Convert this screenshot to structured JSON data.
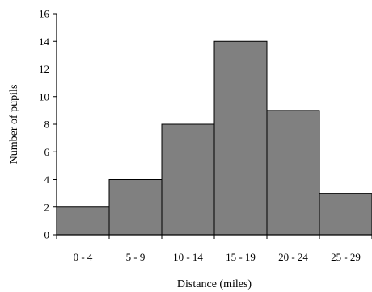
{
  "chart_data": {
    "type": "bar",
    "title": "",
    "xlabel": "Distance (miles)",
    "ylabel": "Number of pupils",
    "categories": [
      "0 - 4",
      "5 - 9",
      "10 - 14",
      "15 - 19",
      "20 - 24",
      "25 - 29"
    ],
    "values": [
      2,
      4,
      8,
      14,
      9,
      3
    ],
    "ylim": [
      0,
      16
    ],
    "yticks": [
      0,
      2,
      4,
      6,
      8,
      10,
      12,
      14,
      16
    ],
    "grid": false,
    "legend": "none",
    "bar_color": "#808080",
    "bar_edge_color": "#000000"
  }
}
